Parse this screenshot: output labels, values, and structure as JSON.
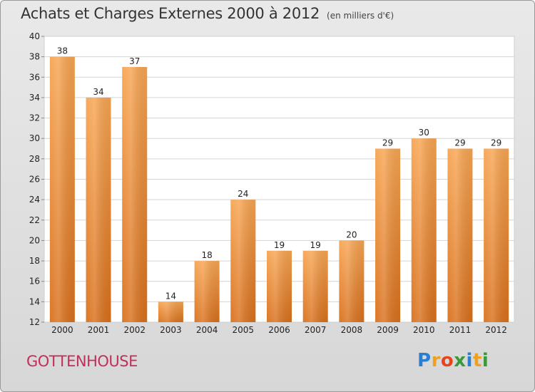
{
  "title": "Achats et Charges Externes 2000 à 2012",
  "unit": "(en milliers d'€)",
  "city": "GOTTENHOUSE",
  "logo": {
    "letters": [
      "P",
      "r",
      "o",
      "x",
      "i",
      "t",
      "i"
    ],
    "colors": [
      "#2a7fd0",
      "#f0a020",
      "#e8431f",
      "#3a9a3a",
      "#2a7fd0",
      "#f0a020",
      "#3a9a3a"
    ]
  },
  "chart_data": {
    "type": "bar",
    "categories": [
      "2000",
      "2001",
      "2002",
      "2003",
      "2004",
      "2005",
      "2006",
      "2007",
      "2008",
      "2009",
      "2010",
      "2011",
      "2012"
    ],
    "values": [
      38,
      34,
      37,
      14,
      18,
      24,
      19,
      19,
      20,
      29,
      30,
      29,
      29
    ],
    "title": "Achats et Charges Externes 2000 à 2012",
    "ylim": [
      12,
      40
    ],
    "yticks": [
      12,
      14,
      16,
      18,
      20,
      22,
      24,
      26,
      28,
      30,
      32,
      34,
      36,
      38,
      40
    ],
    "grid": true,
    "bar_color": "#f08a2e"
  }
}
